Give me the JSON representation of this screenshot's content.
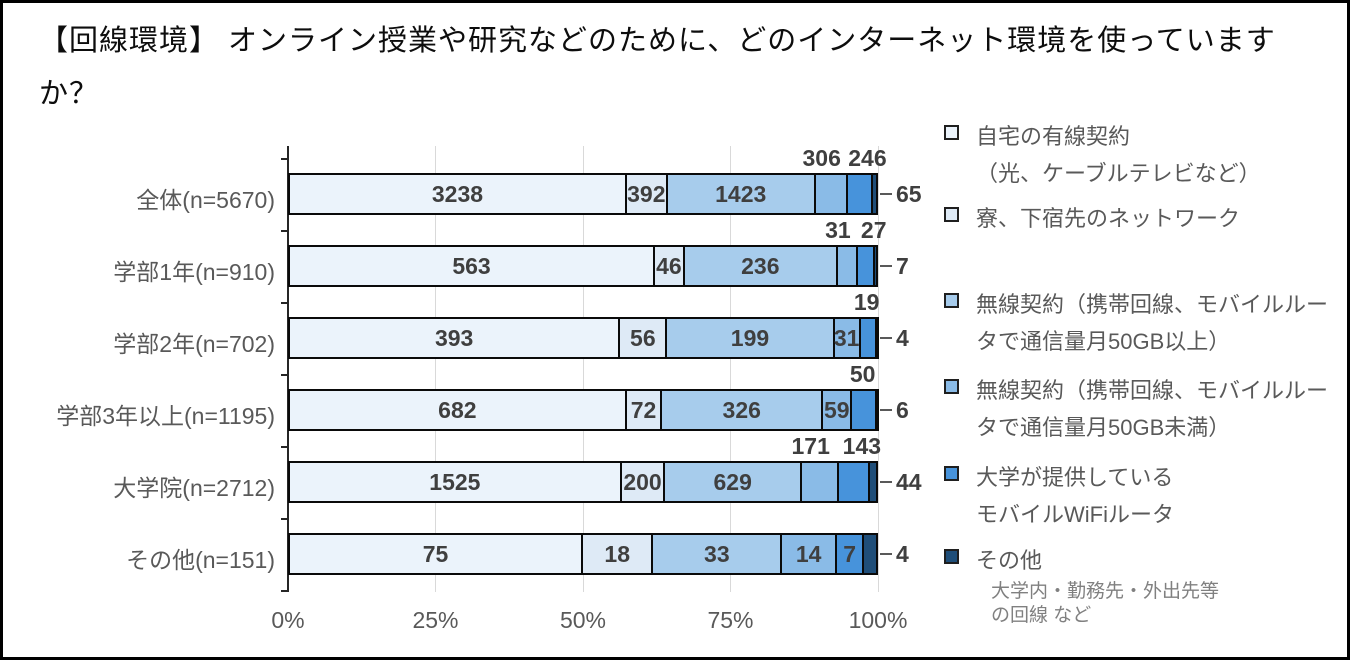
{
  "title": "【回線環境】 オンライン授業や研究などのために、どのインターネット環境を使っていますか？",
  "chart_data": {
    "type": "bar",
    "variant": "100-percent-stacked-horizontal",
    "grid": true,
    "legend_position": "right",
    "xlim": [
      0,
      100
    ],
    "x_ticks": [
      "0%",
      "25%",
      "50%",
      "75%",
      "100%"
    ],
    "series": [
      {
        "name": "自宅の有線契約（光、ケーブルテレビなど）",
        "color": "#EBF3FB",
        "legend_lines": [
          "自宅の有線契約",
          "（光、ケーブルテレビなど）"
        ]
      },
      {
        "name": "寮、下宿先のネットワーク",
        "color": "#DEEAF6",
        "legend_lines": [
          "寮、下宿先のネットワーク"
        ]
      },
      {
        "name": "無線契約（携帯回線、モバイルルータで通信量月50GB以上）",
        "color": "#A7CCEC",
        "legend_lines": [
          "無線契約（携帯回線、モバイルルー",
          "タで通信量月50GB以上）"
        ]
      },
      {
        "name": "無線契約（携帯回線、モバイルルータで通信量月50GB未満）",
        "color": "#8ABBE7",
        "legend_lines": [
          "無線契約（携帯回線、モバイルルー",
          "タで通信量月50GB未満）"
        ]
      },
      {
        "name": "大学が提供しているモバイルWiFiルータ",
        "color": "#4793DB",
        "legend_lines": [
          "大学が提供している",
          "モバイルWiFiルータ"
        ]
      },
      {
        "name": "その他",
        "color": "#1F4E79",
        "legend_lines": [
          "その他"
        ]
      }
    ],
    "legend_note_lines": [
      "大学内・勤務先・外出先等",
      "の回線 など"
    ],
    "rows": [
      {
        "label": "全体(n=5670)",
        "n": 5670,
        "values": [
          3238,
          392,
          1423,
          306,
          246,
          65
        ],
        "placement": [
          "in",
          "in",
          "in",
          "above",
          "above",
          "right"
        ]
      },
      {
        "label": "学部1年(n=910)",
        "n": 910,
        "values": [
          563,
          46,
          236,
          31,
          27,
          7
        ],
        "placement": [
          "in",
          "in",
          "in",
          "above",
          "above",
          "right"
        ]
      },
      {
        "label": "学部2年(n=702)",
        "n": 702,
        "values": [
          393,
          56,
          199,
          31,
          19,
          4
        ],
        "placement": [
          "in",
          "in",
          "in",
          "in",
          "above",
          "right"
        ]
      },
      {
        "label": "学部3年以上(n=1195)",
        "n": 1195,
        "values": [
          682,
          72,
          326,
          59,
          50,
          6
        ],
        "placement": [
          "in",
          "in",
          "in",
          "in",
          "above",
          "right"
        ]
      },
      {
        "label": "大学院(n=2712)",
        "n": 2712,
        "values": [
          1525,
          200,
          629,
          171,
          143,
          44
        ],
        "placement": [
          "in",
          "in",
          "in",
          "above",
          "above",
          "right"
        ]
      },
      {
        "label": "その他(n=151)",
        "n": 151,
        "values": [
          75,
          18,
          33,
          14,
          7,
          4
        ],
        "placement": [
          "in",
          "in",
          "in",
          "in",
          "in",
          "right"
        ]
      }
    ]
  }
}
